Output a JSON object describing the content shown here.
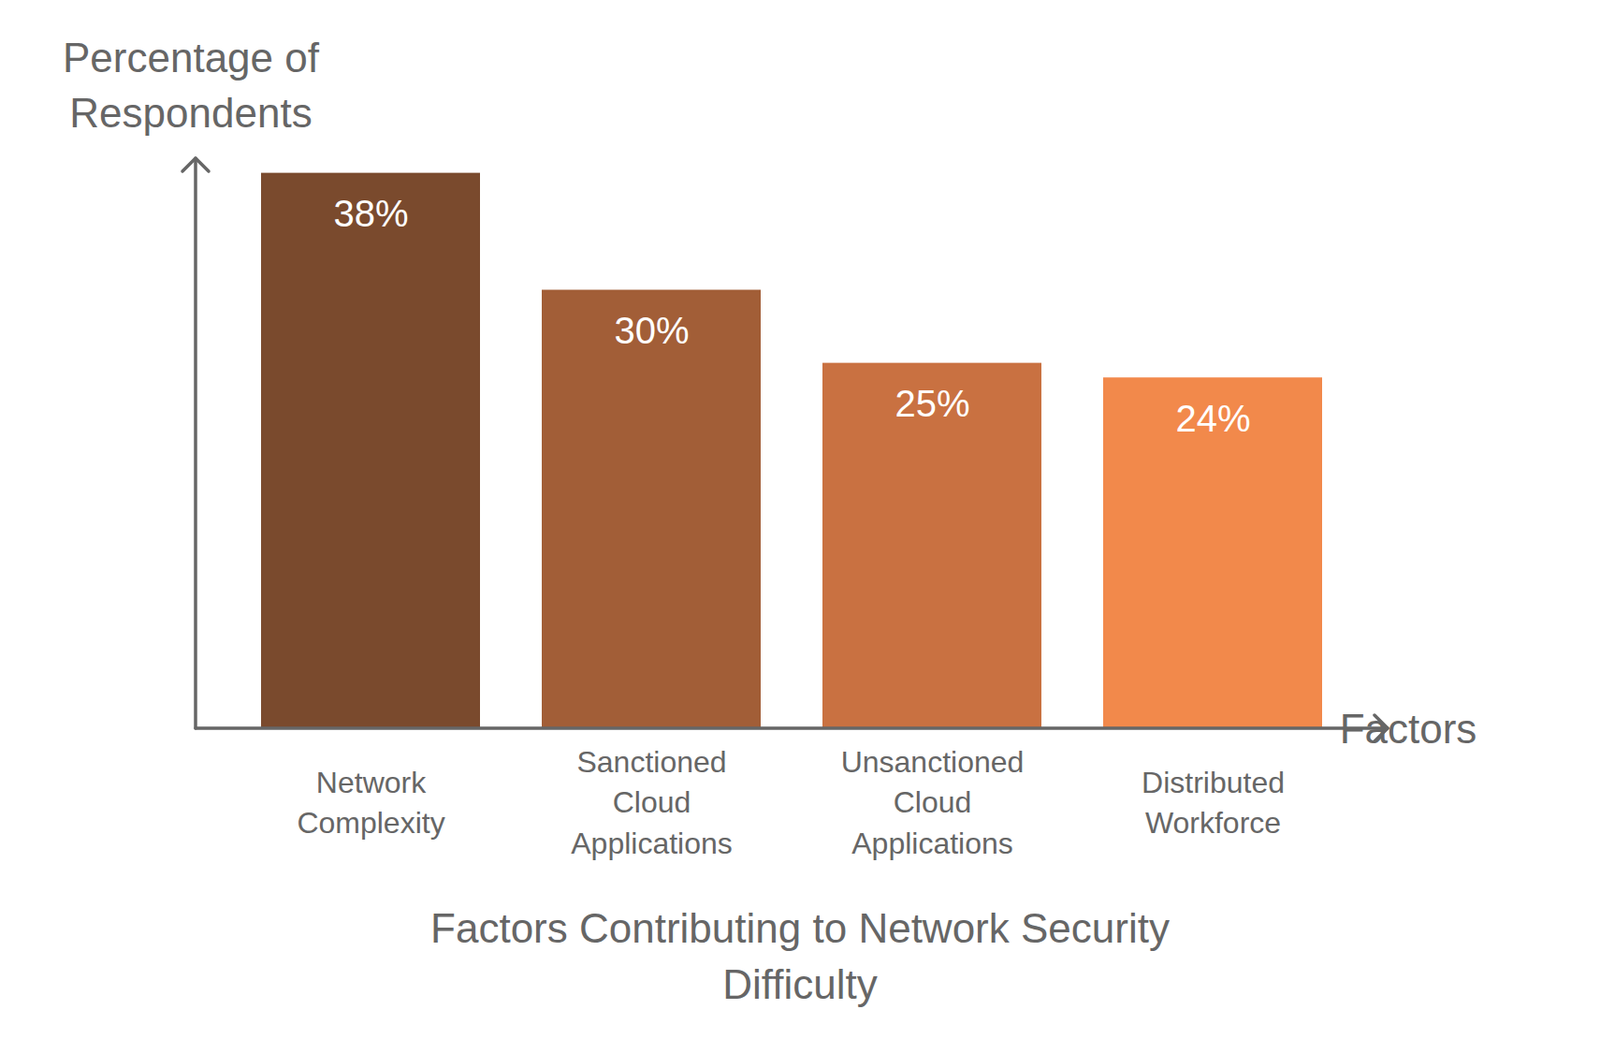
{
  "chart_data": {
    "type": "bar",
    "title": "Factors Contributing to Network Security Difficulty",
    "x_label": "Factors",
    "y_label": "Percentage of Respondents",
    "categories": [
      "Network Complexity",
      "Sanctioned Cloud Applications",
      "Unsanctioned Cloud Applications",
      "Distributed Workforce"
    ],
    "values": [
      38,
      30,
      25,
      24
    ],
    "value_labels": [
      "38%",
      "30%",
      "25%",
      "24%"
    ],
    "colors": [
      "#7a4a2d",
      "#a25e37",
      "#c97141",
      "#f2894b"
    ],
    "ylim": [
      0,
      39
    ],
    "yticks": [],
    "data_labels": true,
    "tick_labels": "x"
  }
}
